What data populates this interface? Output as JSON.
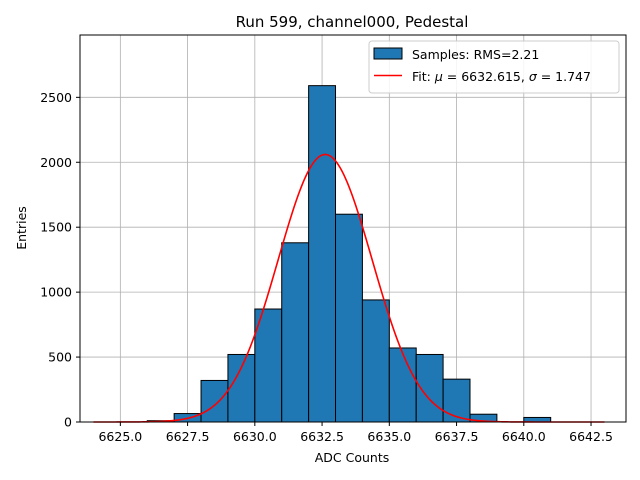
{
  "chart_data": {
    "type": "bar",
    "title": "Run 599, channel000, Pedestal",
    "xlabel": "ADC Counts",
    "ylabel": "Entries",
    "xlim": [
      6623.5,
      6643.8
    ],
    "ylim": [
      0,
      2980
    ],
    "xticks": [
      6625.0,
      6627.5,
      6630.0,
      6632.5,
      6635.0,
      6637.5,
      6640.0,
      6642.5
    ],
    "xtick_labels": [
      "6625.0",
      "6627.5",
      "6630.0",
      "6632.5",
      "6635.0",
      "6637.5",
      "6640.0",
      "6642.5"
    ],
    "yticks": [
      0,
      500,
      1000,
      1500,
      2000,
      2500
    ],
    "ytick_labels": [
      "0",
      "500",
      "1000",
      "1500",
      "2000",
      "2500"
    ],
    "grid": true,
    "legend_position": "top-right",
    "histogram": {
      "name": "Samples: RMS=2.21",
      "color": "#1f77b4",
      "edge_color": "#000000",
      "bin_edges": [
        6626,
        6627,
        6628,
        6629,
        6630,
        6631,
        6632,
        6633,
        6634,
        6635,
        6636,
        6637,
        6638,
        6639,
        6640,
        6641
      ],
      "values": [
        10,
        65,
        320,
        520,
        870,
        1380,
        2590,
        1600,
        940,
        570,
        520,
        330,
        60,
        0,
        35
      ]
    },
    "fit": {
      "name": "Fit: μ = 6632.615, σ = 1.747",
      "label_parts": [
        "Fit: ",
        "μ",
        " = 6632.615, ",
        "σ",
        " = 1.747"
      ],
      "color": "#ff0000",
      "mu": 6632.615,
      "sigma": 1.747,
      "amplitude": 2060,
      "x_range": [
        6624,
        6643
      ]
    }
  }
}
